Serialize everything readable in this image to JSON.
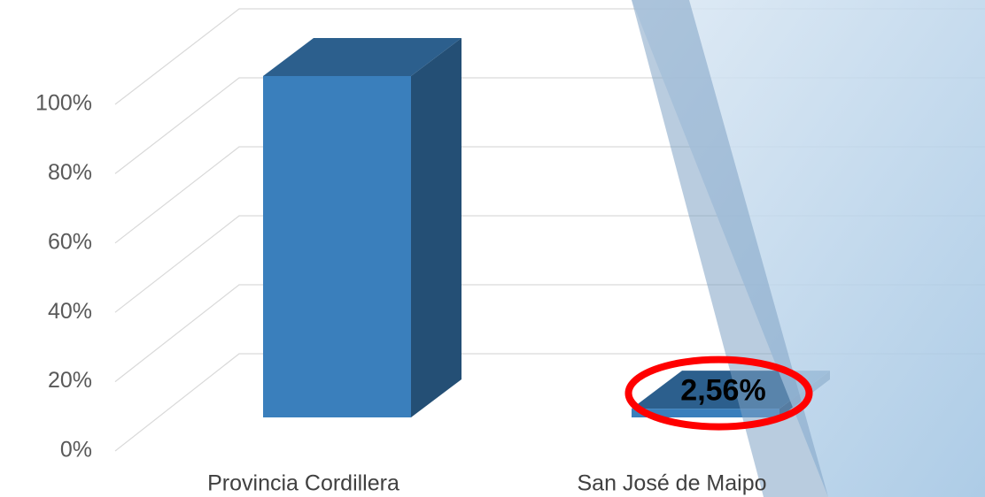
{
  "chart_data": {
    "type": "bar3d",
    "categories": [
      "Provincia Cordillera",
      "San José de Maipo"
    ],
    "values": [
      100,
      2.56
    ],
    "value_labels": [
      null,
      "2,56%"
    ],
    "color": "#3a7fbc",
    "ylim": [
      0,
      100
    ],
    "yticks": [
      {
        "value": 0,
        "label": "0%"
      },
      {
        "value": 20,
        "label": "20%"
      },
      {
        "value": 40,
        "label": "40%"
      },
      {
        "value": 60,
        "label": "60%"
      },
      {
        "value": 80,
        "label": "80%"
      },
      {
        "value": 100,
        "label": "100%"
      }
    ],
    "grid": true
  }
}
